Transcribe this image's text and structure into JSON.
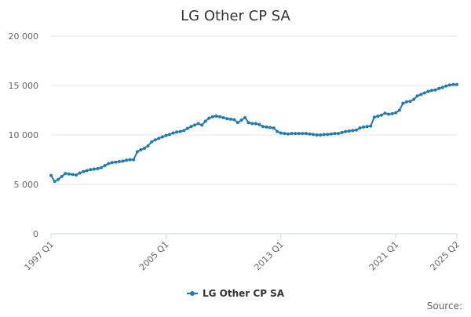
{
  "chart_data": {
    "type": "line",
    "title": "LG Other CP SA",
    "xlabel": "",
    "ylabel": "",
    "ylim": [
      0,
      20000
    ],
    "y_ticks": [
      {
        "value": 0,
        "label": "0"
      },
      {
        "value": 5000,
        "label": "5 000"
      },
      {
        "value": 10000,
        "label": "10 000"
      },
      {
        "value": 15000,
        "label": "15 000"
      },
      {
        "value": 20000,
        "label": "20 000"
      }
    ],
    "x_ticks": [
      {
        "index": 0,
        "label": "1997 Q1"
      },
      {
        "index": 32,
        "label": "2005 Q1"
      },
      {
        "index": 64,
        "label": "2013 Q1"
      },
      {
        "index": 96,
        "label": "2021 Q1"
      },
      {
        "index": 113,
        "label": "2025 Q2"
      }
    ],
    "x_start": "1997 Q1",
    "x_end": "2025 Q2",
    "series": [
      {
        "name": "LG Other CP SA",
        "color": "#1f7bb6",
        "values": [
          5900,
          5300,
          5500,
          5800,
          6100,
          6050,
          6000,
          5950,
          6150,
          6300,
          6400,
          6500,
          6550,
          6600,
          6700,
          6900,
          7100,
          7200,
          7250,
          7300,
          7350,
          7450,
          7500,
          7500,
          8300,
          8500,
          8650,
          8900,
          9300,
          9500,
          9650,
          9800,
          9950,
          10050,
          10200,
          10300,
          10350,
          10450,
          10650,
          10850,
          11000,
          11150,
          11000,
          11400,
          11700,
          11850,
          11900,
          11850,
          11750,
          11650,
          11600,
          11550,
          11250,
          11500,
          11750,
          11250,
          11150,
          11150,
          11050,
          10850,
          10800,
          10750,
          10700,
          10350,
          10200,
          10150,
          10100,
          10150,
          10150,
          10150,
          10150,
          10150,
          10100,
          10050,
          10000,
          10000,
          10050,
          10050,
          10100,
          10150,
          10150,
          10250,
          10350,
          10400,
          10450,
          10500,
          10700,
          10800,
          10850,
          10900,
          11800,
          11900,
          12000,
          12200,
          12100,
          12150,
          12250,
          12500,
          13200,
          13350,
          13400,
          13600,
          13950,
          14100,
          14250,
          14400,
          14500,
          14550,
          14700,
          14800,
          14950,
          15050,
          15100,
          15100
        ]
      }
    ],
    "legend": {
      "position": "bottom-center",
      "entries": [
        "LG Other CP SA"
      ]
    },
    "grid": true,
    "source_label": "Source:"
  }
}
